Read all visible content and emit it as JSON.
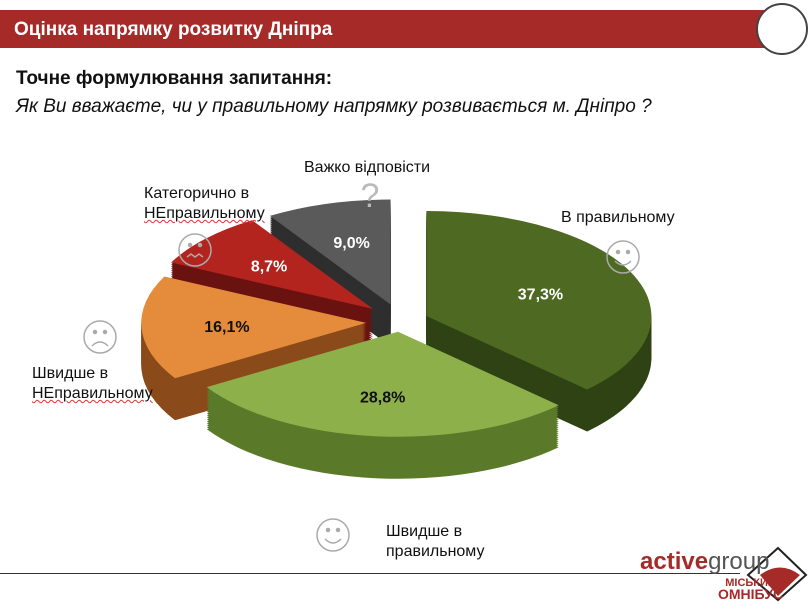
{
  "header": {
    "title": "Оцінка напрямку розвитку Дніпра"
  },
  "question": {
    "heading": "Точне формулювання запитання:",
    "text": "Як Ви вважаєте, чи у правильному напрямку розвивається  м. Дніпро ?"
  },
  "chart_data": {
    "type": "pie",
    "style": "3d-exploded",
    "slices": [
      {
        "label": "В правильному",
        "value": 37.3,
        "value_label": "37,3%",
        "color": "#4e6a22",
        "side": "#2f4214",
        "icon": "smile-icon"
      },
      {
        "label": "Швидше в правильному",
        "value": 28.8,
        "value_label": "28,8%",
        "color": "#8db04a",
        "side": "#5a7a2a",
        "icon": "smile-icon"
      },
      {
        "label": "Швидше в НЕправильному",
        "value": 16.1,
        "value_label": "16,1%",
        "color": "#e58c3c",
        "side": "#8a4a1a",
        "icon": "frown-icon"
      },
      {
        "label": "Категорично в НЕправильному",
        "value": 8.7,
        "value_label": "8,7%",
        "color": "#b3241f",
        "side": "#6a1210",
        "icon": "angry-icon"
      },
      {
        "label": "Важко відповісти",
        "value": 9.0,
        "value_label": "9,0%",
        "color": "#5a5a5a",
        "side": "#2e2e2e",
        "icon": "question-icon"
      }
    ]
  },
  "labels": {
    "l0": "В правильному",
    "l1a": "Швидше в",
    "l1b": "правильному",
    "l2a": "Швидше в",
    "l2b": "НЕправильному",
    "l3a": "Категорично в",
    "l3b": "НЕправильному",
    "l4": "Важко відповісти"
  },
  "logo": {
    "brand": "activegroup",
    "brand_bold": "active",
    "brand_rest": "group",
    "sub1": "МІСЬКИЙ",
    "sub2": "ОМНІБУС",
    "brand_color": "#a52a28"
  }
}
